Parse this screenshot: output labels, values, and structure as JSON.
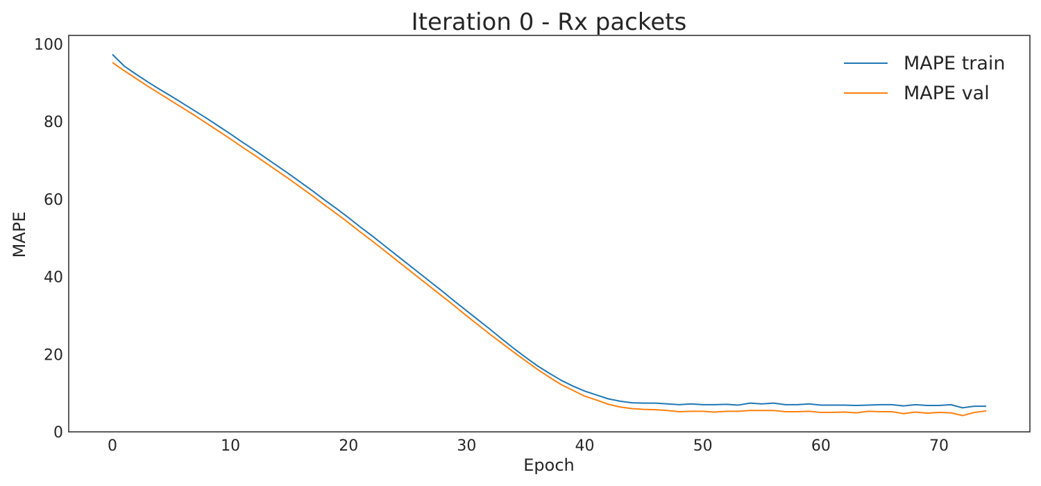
{
  "chart_data": {
    "type": "line",
    "title": "Iteration 0 - Rx packets",
    "xlabel": "Epoch",
    "ylabel": "MAPE",
    "xlim": [
      -3.7,
      77.7
    ],
    "ylim": [
      0,
      102.2
    ],
    "xticks": [
      0,
      10,
      20,
      30,
      40,
      50,
      60,
      70
    ],
    "yticks": [
      0,
      20,
      40,
      60,
      80,
      100
    ],
    "grid": false,
    "legend_position": "top-right",
    "x": [
      0,
      1,
      2,
      3,
      4,
      5,
      6,
      7,
      8,
      9,
      10,
      11,
      12,
      13,
      14,
      15,
      16,
      17,
      18,
      19,
      20,
      21,
      22,
      23,
      24,
      25,
      26,
      27,
      28,
      29,
      30,
      31,
      32,
      33,
      34,
      35,
      36,
      37,
      38,
      39,
      40,
      41,
      42,
      43,
      44,
      45,
      46,
      47,
      48,
      49,
      50,
      51,
      52,
      53,
      54,
      55,
      56,
      57,
      58,
      59,
      60,
      61,
      62,
      63,
      64,
      65,
      66,
      67,
      68,
      69,
      70,
      71,
      72,
      73,
      74
    ],
    "series": [
      {
        "name": "MAPE train",
        "color": "#1f77b4",
        "values": [
          97.3,
          94.3,
          92.2,
          90.2,
          88.3,
          86.5,
          84.6,
          82.7,
          80.8,
          78.8,
          76.8,
          74.7,
          72.7,
          70.6,
          68.5,
          66.4,
          64.2,
          62.0,
          59.7,
          57.5,
          55.2,
          52.8,
          50.5,
          48.1,
          45.7,
          43.3,
          40.9,
          38.5,
          36.1,
          33.6,
          31.2,
          28.8,
          26.4,
          23.9,
          21.5,
          19.2,
          17.0,
          15.1,
          13.3,
          11.8,
          10.5,
          9.5,
          8.5,
          7.9,
          7.5,
          7.4,
          7.4,
          7.2,
          7.0,
          7.2,
          7.0,
          7.0,
          7.1,
          6.9,
          7.4,
          7.2,
          7.4,
          7.0,
          7.0,
          7.2,
          6.9,
          6.9,
          6.9,
          6.8,
          6.9,
          7.0,
          7.0,
          6.7,
          7.0,
          6.8,
          6.8,
          7.0,
          6.2,
          6.6,
          6.6
        ]
      },
      {
        "name": "MAPE val",
        "color": "#ff7f0e",
        "values": [
          95.2,
          93.1,
          91.1,
          89.1,
          87.2,
          85.3,
          83.4,
          81.5,
          79.5,
          77.5,
          75.5,
          73.4,
          71.4,
          69.3,
          67.2,
          65.1,
          62.9,
          60.7,
          58.4,
          56.2,
          53.9,
          51.5,
          49.2,
          46.8,
          44.4,
          42.0,
          39.6,
          37.2,
          34.8,
          32.4,
          29.9,
          27.5,
          25.1,
          22.8,
          20.5,
          18.3,
          16.1,
          14.1,
          12.2,
          10.7,
          9.2,
          8.2,
          7.1,
          6.4,
          6.0,
          5.8,
          5.7,
          5.5,
          5.2,
          5.3,
          5.3,
          5.1,
          5.3,
          5.3,
          5.5,
          5.5,
          5.5,
          5.2,
          5.2,
          5.3,
          5.0,
          5.0,
          5.1,
          4.9,
          5.3,
          5.2,
          5.2,
          4.7,
          5.1,
          4.8,
          5.0,
          4.9,
          4.2,
          5.0,
          5.4
        ]
      }
    ]
  }
}
